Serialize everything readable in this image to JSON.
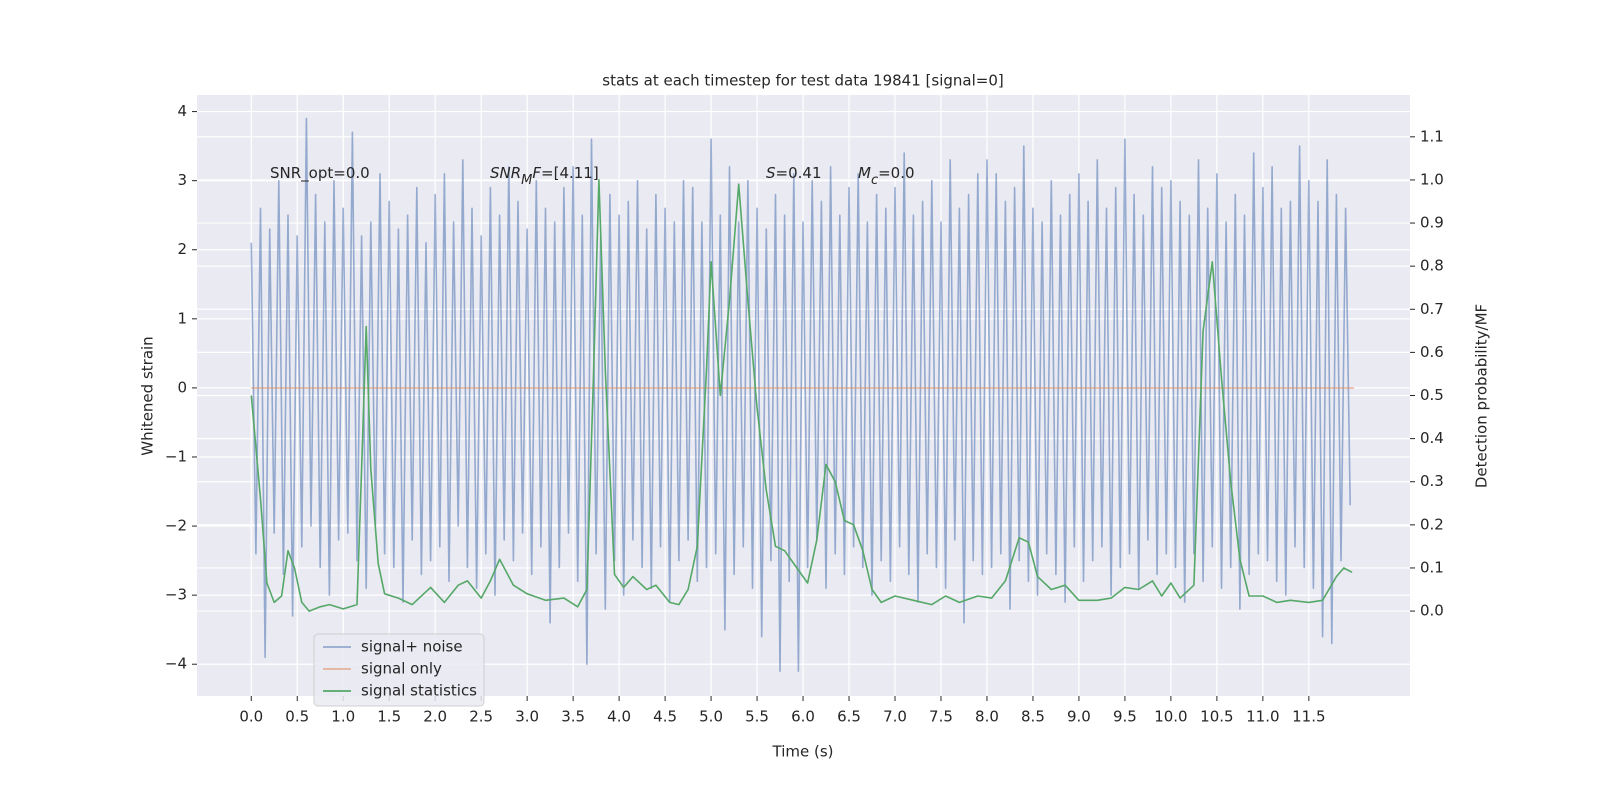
{
  "chart_data": {
    "type": "line",
    "title": "stats at each timestep for test data 19841 [signal=0]",
    "xlabel": "Time (s)",
    "ylabel": "Whitened strain",
    "y2label": "Detection probability/MF",
    "xlim": [
      -0.59,
      12.6
    ],
    "ylim": [
      -4.46,
      4.24
    ],
    "y2lim": [
      -0.197,
      1.197
    ],
    "xticks": [
      {
        "value": 0,
        "label": "0.0"
      },
      {
        "value": 0.5,
        "label": "0.5"
      },
      {
        "value": 1,
        "label": "1.0"
      },
      {
        "value": 1.5,
        "label": "1.5"
      },
      {
        "value": 2,
        "label": "2.0"
      },
      {
        "value": 2.5,
        "label": "2.5"
      },
      {
        "value": 3,
        "label": "3.0"
      },
      {
        "value": 3.5,
        "label": "3.5"
      },
      {
        "value": 4,
        "label": "4.0"
      },
      {
        "value": 4.5,
        "label": "4.5"
      },
      {
        "value": 5,
        "label": "5.0"
      },
      {
        "value": 5.5,
        "label": "5.5"
      },
      {
        "value": 6,
        "label": "6.0"
      },
      {
        "value": 6.5,
        "label": "6.5"
      },
      {
        "value": 7,
        "label": "7.0"
      },
      {
        "value": 7.5,
        "label": "7.5"
      },
      {
        "value": 8,
        "label": "8.0"
      },
      {
        "value": 8.5,
        "label": "8.5"
      },
      {
        "value": 9,
        "label": "9.0"
      },
      {
        "value": 9.5,
        "label": "9.5"
      },
      {
        "value": 10,
        "label": "10.0"
      },
      {
        "value": 10.5,
        "label": "10.5"
      },
      {
        "value": 11,
        "label": "11.0"
      },
      {
        "value": 11.5,
        "label": "11.5"
      }
    ],
    "yticks": [
      {
        "value": -4,
        "label": "−4"
      },
      {
        "value": -3,
        "label": "−3"
      },
      {
        "value": -2,
        "label": "−2"
      },
      {
        "value": -1,
        "label": "−1"
      },
      0,
      1,
      2,
      3,
      4
    ],
    "y2ticks": [
      {
        "value": 0,
        "label": "0.0"
      },
      {
        "value": 0.1,
        "label": "0.1"
      },
      {
        "value": 0.2,
        "label": "0.2"
      },
      {
        "value": 0.3,
        "label": "0.3"
      },
      {
        "value": 0.4,
        "label": "0.4"
      },
      {
        "value": 0.5,
        "label": "0.5"
      },
      {
        "value": 0.6,
        "label": "0.6"
      },
      {
        "value": 0.7,
        "label": "0.7"
      },
      {
        "value": 0.8,
        "label": "0.8"
      },
      {
        "value": 0.9,
        "label": "0.9"
      },
      {
        "value": 1,
        "label": "1.0"
      },
      {
        "value": 1.1,
        "label": "1.1"
      }
    ],
    "grid": true,
    "legend": "lower left",
    "annotations": [
      [
        {
          "text": "SNR_opt=0.0"
        }
      ],
      [
        {
          "text": "SNR",
          "italic": true
        },
        {
          "text": "M",
          "italic": true,
          "sub": true
        },
        {
          "text": "F",
          "italic": true
        },
        {
          "text": "=[4.11]"
        }
      ],
      [
        {
          "text": "S",
          "italic": true
        },
        {
          "text": "=0.41"
        }
      ],
      [
        {
          "text": "M",
          "italic": true
        },
        {
          "text": "c",
          "italic": true,
          "sub": true
        },
        {
          "text": "=0.0"
        }
      ]
    ],
    "series": [
      {
        "name": "signal+ noise",
        "color": "#4c72b0",
        "opacity": 0.55,
        "axis": "y",
        "x": [
          0,
          0.05,
          0.1,
          0.15,
          0.2,
          0.25,
          0.3,
          0.35,
          0.4,
          0.45,
          0.5,
          0.55,
          0.6,
          0.65,
          0.7,
          0.75,
          0.8,
          0.85,
          0.9,
          0.95,
          1,
          1.05,
          1.1,
          1.15,
          1.2,
          1.25,
          1.3,
          1.35,
          1.4,
          1.45,
          1.5,
          1.55,
          1.6,
          1.65,
          1.7,
          1.75,
          1.8,
          1.85,
          1.9,
          1.95,
          2,
          2.05,
          2.1,
          2.15,
          2.2,
          2.25,
          2.3,
          2.35,
          2.4,
          2.45,
          2.5,
          2.55,
          2.6,
          2.65,
          2.7,
          2.75,
          2.8,
          2.85,
          2.9,
          2.95,
          3,
          3.05,
          3.1,
          3.15,
          3.2,
          3.25,
          3.3,
          3.35,
          3.4,
          3.45,
          3.5,
          3.55,
          3.6,
          3.65,
          3.7,
          3.75,
          3.8,
          3.85,
          3.9,
          3.95,
          4,
          4.05,
          4.1,
          4.15,
          4.2,
          4.25,
          4.3,
          4.35,
          4.4,
          4.45,
          4.5,
          4.55,
          4.6,
          4.65,
          4.7,
          4.75,
          4.8,
          4.85,
          4.9,
          4.95,
          5,
          5.05,
          5.1,
          5.15,
          5.2,
          5.25,
          5.3,
          5.35,
          5.4,
          5.45,
          5.5,
          5.55,
          5.6,
          5.65,
          5.7,
          5.75,
          5.8,
          5.85,
          5.9,
          5.95,
          6,
          6.05,
          6.1,
          6.15,
          6.2,
          6.25,
          6.3,
          6.35,
          6.4,
          6.45,
          6.5,
          6.55,
          6.6,
          6.65,
          6.7,
          6.75,
          6.8,
          6.85,
          6.9,
          6.95,
          7,
          7.05,
          7.1,
          7.15,
          7.2,
          7.25,
          7.3,
          7.35,
          7.4,
          7.45,
          7.5,
          7.55,
          7.6,
          7.65,
          7.7,
          7.75,
          7.8,
          7.85,
          7.9,
          7.95,
          8,
          8.05,
          8.1,
          8.15,
          8.2,
          8.25,
          8.3,
          8.35,
          8.4,
          8.45,
          8.5,
          8.55,
          8.6,
          8.65,
          8.7,
          8.75,
          8.8,
          8.85,
          8.9,
          8.95,
          9,
          9.05,
          9.1,
          9.15,
          9.2,
          9.25,
          9.3,
          9.35,
          9.4,
          9.45,
          9.5,
          9.55,
          9.6,
          9.65,
          9.7,
          9.75,
          9.8,
          9.85,
          9.9,
          9.95,
          10,
          10.05,
          10.1,
          10.15,
          10.2,
          10.25,
          10.3,
          10.35,
          10.4,
          10.45,
          10.5,
          10.55,
          10.6,
          10.65,
          10.7,
          10.75,
          10.8,
          10.85,
          10.9,
          10.95,
          11,
          11.05,
          11.1,
          11.15,
          11.2,
          11.25,
          11.3,
          11.35,
          11.4,
          11.45,
          11.5,
          11.55,
          11.6,
          11.65,
          11.7,
          11.75,
          11.8,
          11.85,
          11.9,
          11.95
        ],
        "values": [
          2.1,
          -2.4,
          2.6,
          -3.9,
          2.3,
          -2.1,
          3.0,
          -2.7,
          2.5,
          -3.3,
          2.2,
          -2.3,
          3.9,
          -2.0,
          2.8,
          -2.6,
          2.4,
          -3.0,
          3.0,
          -2.2,
          2.6,
          -2.1,
          3.7,
          -2.5,
          2.2,
          -2.9,
          2.4,
          -2.0,
          3.1,
          -2.4,
          2.7,
          -2.6,
          2.3,
          -3.1,
          2.5,
          -2.2,
          2.9,
          -2.7,
          2.1,
          -2.5,
          2.8,
          -2.3,
          3.1,
          -2.8,
          2.4,
          -2.0,
          3.3,
          -2.6,
          2.6,
          -2.9,
          2.2,
          -2.4,
          2.9,
          -3.0,
          2.5,
          -2.2,
          3.2,
          -2.5,
          2.7,
          -2.1,
          2.3,
          -2.7,
          3.0,
          -2.3,
          2.6,
          -3.4,
          2.4,
          -2.6,
          2.9,
          -2.1,
          3.2,
          -2.8,
          2.5,
          -4.0,
          3.6,
          -2.4,
          2.2,
          -3.2,
          2.8,
          -2.5,
          2.5,
          -3.0,
          2.7,
          -2.2,
          3.0,
          -2.6,
          2.3,
          -2.9,
          2.8,
          -2.3,
          2.6,
          -3.1,
          2.4,
          -2.5,
          3.0,
          -2.2,
          2.9,
          -2.8,
          2.4,
          -2.6,
          3.6,
          -2.4,
          2.5,
          -3.5,
          3.2,
          -2.7,
          2.4,
          -2.3,
          3.0,
          -2.9,
          2.6,
          -3.6,
          2.3,
          -2.5,
          2.8,
          -4.1,
          2.5,
          -2.8,
          3.1,
          -4.1,
          2.4,
          -2.6,
          3.0,
          -2.2,
          2.7,
          -2.9,
          3.2,
          -2.4,
          2.5,
          -2.7,
          2.9,
          -2.3,
          3.1,
          -2.6,
          2.4,
          -3.0,
          2.8,
          -2.5,
          2.6,
          -2.8,
          2.9,
          -2.3,
          3.4,
          -2.7,
          2.5,
          -3.1,
          2.7,
          -2.4,
          3.0,
          -2.6,
          2.4,
          -2.9,
          3.3,
          -2.2,
          2.6,
          -3.4,
          2.8,
          -2.5,
          3.1,
          -2.7,
          3.3,
          -2.6,
          3.1,
          -2.4,
          2.7,
          -3.2,
          2.9,
          -2.5,
          3.5,
          -2.8,
          2.6,
          -3.0,
          2.4,
          -2.4,
          3.0,
          -2.7,
          2.5,
          -3.1,
          2.8,
          -2.3,
          3.1,
          -2.8,
          2.7,
          -2.5,
          3.3,
          -2.3,
          2.6,
          -3.0,
          2.9,
          -2.6,
          3.6,
          -2.4,
          2.8,
          -2.9,
          2.5,
          -2.2,
          3.2,
          -2.7,
          2.9,
          -2.4,
          3.0,
          -2.6,
          2.7,
          -3.1,
          2.5,
          -2.4,
          3.3,
          -2.8,
          2.6,
          -2.3,
          3.1,
          -2.9,
          2.4,
          -2.6,
          2.8,
          -3.2,
          2.5,
          -2.7,
          3.4,
          -2.4,
          2.9,
          -2.5,
          3.2,
          -2.8,
          2.6,
          -3.0,
          2.7,
          -2.3,
          3.5,
          -2.6,
          3.0,
          -2.9,
          2.7,
          -3.6,
          3.3,
          -3.7,
          2.8,
          -2.5,
          2.6,
          -1.7
        ]
      },
      {
        "name": "signal only",
        "color": "#dd8452",
        "opacity": 0.55,
        "axis": "y",
        "x": [
          0,
          11.99
        ],
        "values": [
          0,
          0
        ]
      },
      {
        "name": "signal statistics",
        "color": "#55a868",
        "opacity": 1,
        "axis": "y2",
        "x": [
          0,
          0.1,
          0.17,
          0.25,
          0.33,
          0.4,
          0.47,
          0.55,
          0.63,
          0.75,
          0.85,
          1.0,
          1.15,
          1.2,
          1.25,
          1.3,
          1.38,
          1.45,
          1.6,
          1.75,
          1.95,
          2.1,
          2.25,
          2.35,
          2.5,
          2.6,
          2.7,
          2.85,
          3.0,
          3.2,
          3.4,
          3.55,
          3.65,
          3.72,
          3.78,
          3.85,
          3.95,
          4.05,
          4.15,
          4.3,
          4.4,
          4.55,
          4.65,
          4.75,
          4.85,
          4.95,
          5.0,
          5.1,
          5.2,
          5.3,
          5.4,
          5.5,
          5.6,
          5.7,
          5.8,
          5.95,
          6.05,
          6.15,
          6.25,
          6.35,
          6.45,
          6.55,
          6.65,
          6.75,
          6.85,
          7.0,
          7.2,
          7.4,
          7.55,
          7.7,
          7.9,
          8.05,
          8.2,
          8.35,
          8.45,
          8.55,
          8.7,
          8.85,
          9.0,
          9.2,
          9.35,
          9.5,
          9.65,
          9.8,
          9.9,
          10.0,
          10.1,
          10.25,
          10.35,
          10.45,
          10.55,
          10.65,
          10.75,
          10.85,
          11.0,
          11.15,
          11.3,
          11.5,
          11.65,
          11.8,
          11.88,
          11.97
        ],
        "values": [
          0.5,
          0.26,
          0.065,
          0.02,
          0.035,
          0.14,
          0.1,
          0.02,
          0.0,
          0.01,
          0.015,
          0.005,
          0.015,
          0.33,
          0.66,
          0.33,
          0.11,
          0.04,
          0.03,
          0.015,
          0.055,
          0.02,
          0.06,
          0.07,
          0.03,
          0.07,
          0.12,
          0.06,
          0.04,
          0.025,
          0.03,
          0.01,
          0.05,
          0.54,
          1.0,
          0.56,
          0.085,
          0.055,
          0.08,
          0.05,
          0.06,
          0.02,
          0.015,
          0.05,
          0.15,
          0.56,
          0.81,
          0.5,
          0.72,
          0.99,
          0.72,
          0.47,
          0.28,
          0.15,
          0.14,
          0.095,
          0.065,
          0.165,
          0.34,
          0.3,
          0.21,
          0.2,
          0.14,
          0.05,
          0.02,
          0.035,
          0.025,
          0.015,
          0.035,
          0.02,
          0.035,
          0.03,
          0.07,
          0.17,
          0.16,
          0.08,
          0.05,
          0.06,
          0.025,
          0.025,
          0.03,
          0.055,
          0.05,
          0.07,
          0.035,
          0.065,
          0.03,
          0.06,
          0.65,
          0.81,
          0.54,
          0.3,
          0.12,
          0.035,
          0.035,
          0.02,
          0.025,
          0.02,
          0.025,
          0.08,
          0.1,
          0.09
        ]
      }
    ]
  }
}
